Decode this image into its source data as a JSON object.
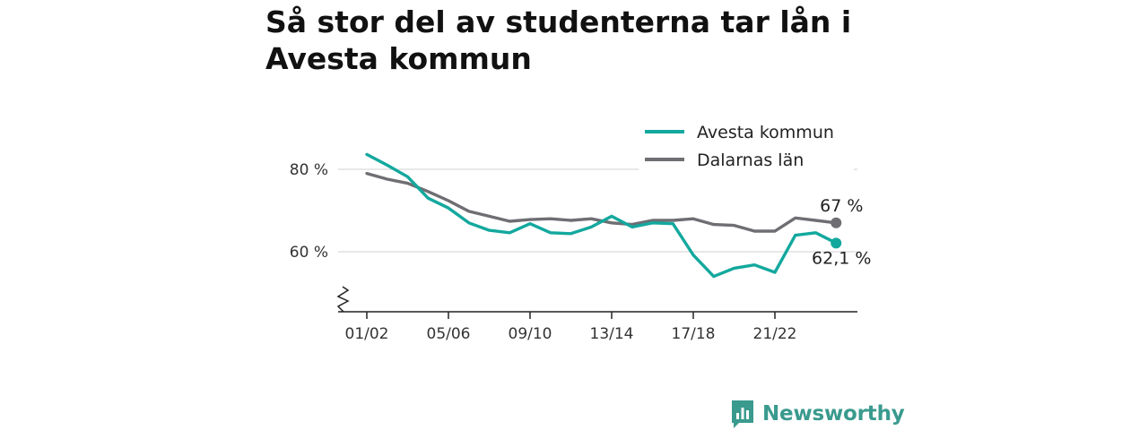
{
  "title": "Så stor del av studenterna tar lån i Avesta kommun",
  "brand": {
    "name": "Newsworthy",
    "color": "#3a9a8e",
    "icon": "newsworthy-logo-icon"
  },
  "chart_data": {
    "type": "line",
    "categories": [
      "01/02",
      "02/03",
      "03/04",
      "04/05",
      "05/06",
      "06/07",
      "07/08",
      "08/09",
      "09/10",
      "10/11",
      "11/12",
      "12/13",
      "13/14",
      "14/15",
      "15/16",
      "16/17",
      "17/18",
      "18/19",
      "19/20",
      "20/21",
      "21/22",
      "22/23",
      "23/24",
      "24/25"
    ],
    "x_tick_labels": [
      "01/02",
      "05/06",
      "09/10",
      "13/14",
      "17/18",
      "21/22"
    ],
    "y_tick_labels": [
      "60 %",
      "80 %"
    ],
    "y_ticks": [
      60,
      80
    ],
    "ylim": [
      45,
      90
    ],
    "axis_break": true,
    "grid": true,
    "legend_position": "top-right",
    "series": [
      {
        "name": "Avesta kommun",
        "color": "#13a89e",
        "values": [
          83.6,
          81.0,
          78.2,
          73.0,
          70.6,
          67.0,
          65.2,
          64.6,
          66.8,
          64.6,
          64.4,
          66.0,
          68.6,
          66.0,
          67.0,
          66.8,
          59.2,
          54.0,
          56.0,
          56.8,
          55.0,
          64.0,
          64.6,
          62.1
        ],
        "end_label": "62,1 %"
      },
      {
        "name": "Dalarnas län",
        "color": "#6e6e73",
        "values": [
          79.0,
          77.6,
          76.6,
          74.6,
          72.4,
          69.8,
          68.6,
          67.4,
          67.8,
          68.0,
          67.6,
          68.0,
          67.0,
          66.6,
          67.6,
          67.6,
          68.0,
          66.6,
          66.4,
          65.0,
          65.0,
          68.2,
          67.6,
          67.0
        ],
        "end_label": "67 %"
      }
    ]
  }
}
